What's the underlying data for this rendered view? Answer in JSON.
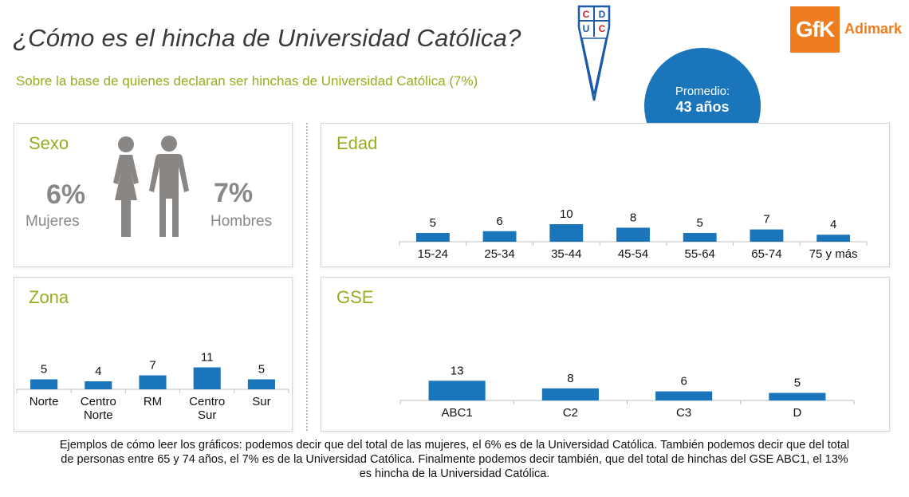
{
  "header": {
    "title": "¿Cómo es el hincha de Universidad Católica?",
    "subtitle": "Sobre la base de quienes declaran ser hinchas de Universidad Católica (7%)",
    "crest_letters": [
      "C",
      "D",
      "U",
      "C"
    ],
    "brand_mark": "GfK",
    "brand_name": "Adimark"
  },
  "average": {
    "label": "Promedio:",
    "value": "43 años"
  },
  "sexo": {
    "title": "Sexo",
    "women": {
      "value": "6%",
      "label": "Mujeres"
    },
    "men": {
      "value": "7%",
      "label": "Hombres"
    }
  },
  "colors": {
    "bar": "#1b75bb",
    "accent": "#9aab1e",
    "brand": "#ee7d1f",
    "crest_red": "#d42027",
    "crest_blue": "#1b5aa8"
  },
  "chart_data": [
    {
      "type": "bar",
      "title": "Edad",
      "categories": [
        "15-24",
        "25-34",
        "35-44",
        "45-54",
        "55-64",
        "65-74",
        "75 y más"
      ],
      "values": [
        5,
        6,
        10,
        8,
        5,
        7,
        4
      ],
      "ylim": [
        0,
        14
      ],
      "grid": false,
      "data_labels": true
    },
    {
      "type": "bar",
      "title": "Zona",
      "categories": [
        [
          "Norte"
        ],
        [
          "Centro",
          "Norte"
        ],
        [
          "RM"
        ],
        [
          "Centro",
          "Sur"
        ],
        [
          "Sur"
        ]
      ],
      "values": [
        5,
        4,
        7,
        11,
        5
      ],
      "ylim": [
        0,
        14
      ],
      "grid": false,
      "data_labels": true
    },
    {
      "type": "bar",
      "title": "GSE",
      "categories": [
        "ABC1",
        "C2",
        "C3",
        "D"
      ],
      "values": [
        13,
        8,
        6,
        5
      ],
      "ylim": [
        0,
        14
      ],
      "grid": false,
      "data_labels": true
    }
  ],
  "footer": {
    "lines": [
      "Ejemplos de cómo leer los gráficos: podemos decir que del total de las mujeres, el 6% es de la Universidad Católica. También podemos decir que del total",
      "de personas entre 65 y 74 años, el 7% es de la Universidad Católica. Finalmente podemos decir también, que del total de hinchas del GSE ABC1, el 13%",
      "es hincha de la Universidad Católica."
    ]
  }
}
